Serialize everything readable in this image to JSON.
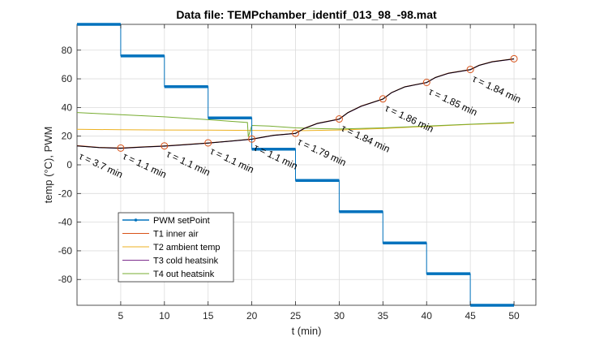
{
  "chart_data": {
    "type": "line",
    "title": "Data file: TEMPchamber_identif_013_98_-98.mat",
    "xlabel": "t (min)",
    "ylabel": "temp (°C), PWM",
    "xlim": [
      0,
      52.5
    ],
    "ylim": [
      -98,
      98
    ],
    "xticks": [
      5,
      10,
      15,
      20,
      25,
      30,
      35,
      40,
      45,
      50
    ],
    "yticks": [
      -80,
      -60,
      -40,
      -20,
      0,
      20,
      40,
      60,
      80
    ],
    "grid": true,
    "legend_position": "bottom-left",
    "series": [
      {
        "name": "PWM setPoint",
        "color": "#0072BD",
        "style": "step",
        "x": [
          0,
          5,
          5,
          10,
          10,
          15,
          15,
          20,
          20,
          25,
          25,
          30,
          30,
          35,
          35,
          40,
          40,
          45,
          45,
          50
        ],
        "y": [
          98,
          98,
          76,
          76,
          54.5,
          54.5,
          32.7,
          32.7,
          10.9,
          10.9,
          -10.9,
          -10.9,
          -32.7,
          -32.7,
          -54.5,
          -54.5,
          -76,
          -76,
          -98,
          -98
        ]
      },
      {
        "name": "T1 inner air",
        "color": "#D95319",
        "x": [
          0,
          2.5,
          5,
          7.5,
          10,
          12.5,
          15,
          17.5,
          20,
          22.5,
          25,
          26,
          27.5,
          30,
          31,
          32.5,
          35,
          36,
          37.5,
          40,
          41,
          42.5,
          45,
          46,
          47.5,
          50
        ],
        "y": [
          13.5,
          12.2,
          11.7,
          12.5,
          13.2,
          14.2,
          15.3,
          16.6,
          18,
          20.7,
          22,
          25.5,
          29,
          32,
          36.5,
          41,
          46,
          50.5,
          54.5,
          57.5,
          61,
          64,
          66.5,
          69.5,
          72,
          74
        ]
      },
      {
        "name": "T2 ambient temp",
        "color": "#EDB120",
        "x": [
          0,
          5,
          10,
          15,
          20,
          25,
          30,
          35,
          40,
          45,
          50
        ],
        "y": [
          24.8,
          24.5,
          24.3,
          24.2,
          24,
          23.8,
          24.3,
          25.4,
          26.8,
          28.2,
          29.2
        ]
      },
      {
        "name": "T3 cold heatsink",
        "color": "#7E2F8E",
        "x": [
          0,
          2.5,
          5,
          7.5,
          10,
          12.5,
          15,
          17.5,
          20,
          22.5,
          25,
          26,
          27.5,
          30,
          31,
          32.5,
          35,
          36,
          37.5,
          40,
          41,
          42.5,
          45,
          46,
          47.5,
          50
        ],
        "y": [
          13.2,
          12,
          11.5,
          12.3,
          13,
          14,
          15.1,
          16.4,
          17.8,
          20.5,
          21.8,
          25.3,
          28.8,
          31.8,
          36.3,
          40.8,
          45.8,
          50.3,
          54.3,
          57.3,
          60.8,
          63.8,
          66.3,
          69.3,
          71.8,
          73.8
        ]
      },
      {
        "name": "T4 out heatsink",
        "color": "#77AC30",
        "x": [
          0,
          5,
          10,
          15,
          19.5,
          19.6,
          20,
          22,
          25,
          28,
          30,
          35,
          40,
          45,
          50
        ],
        "y": [
          36.5,
          35,
          33.5,
          31.5,
          29.5,
          19.5,
          27.5,
          27,
          25.8,
          25.2,
          25,
          25.8,
          27,
          28.3,
          29.5
        ]
      }
    ],
    "fit_curves": {
      "color": "#000000",
      "x": [
        0,
        2.5,
        5,
        7.5,
        10,
        12.5,
        15,
        17.5,
        20,
        22.5,
        25,
        26,
        27.5,
        30,
        31,
        32.5,
        35,
        36,
        37.5,
        40,
        41,
        42.5,
        45,
        46,
        47.5,
        50
      ],
      "y": [
        13.2,
        12,
        11.6,
        12.4,
        13.1,
        14.1,
        15.2,
        16.5,
        17.9,
        20.6,
        21.9,
        25.4,
        28.9,
        31.9,
        36.4,
        40.9,
        45.9,
        50.4,
        54.4,
        57.4,
        60.9,
        63.9,
        66.4,
        69.4,
        71.9,
        73.9
      ]
    },
    "markers": {
      "color": "#D95319",
      "shape": "circle",
      "x": [
        5,
        10,
        15,
        20,
        25,
        30,
        35,
        40,
        45,
        50
      ],
      "y": [
        11.7,
        13.2,
        15.3,
        18,
        22,
        32,
        46,
        57.5,
        66.5,
        74
      ]
    },
    "annotations": [
      {
        "text": "τ = 3.7 min",
        "x": 0.5,
        "y": 9
      },
      {
        "text": "τ = 1.1 min",
        "x": 5.5,
        "y": 9
      },
      {
        "text": "τ = 1.1 min",
        "x": 10.5,
        "y": 10.5
      },
      {
        "text": "τ = 1.1 min",
        "x": 15.5,
        "y": 12.5
      },
      {
        "text": "τ = 1.1 min",
        "x": 20.5,
        "y": 15
      },
      {
        "text": "τ = 1.79 min",
        "x": 25.5,
        "y": 19
      },
      {
        "text": "τ = 1.84 min",
        "x": 30.5,
        "y": 28.5
      },
      {
        "text": "τ = 1.86 min",
        "x": 35.5,
        "y": 42.5
      },
      {
        "text": "τ = 1.85 min",
        "x": 40.5,
        "y": 54
      },
      {
        "text": "τ = 1.84 min",
        "x": 45.5,
        "y": 63
      }
    ]
  }
}
